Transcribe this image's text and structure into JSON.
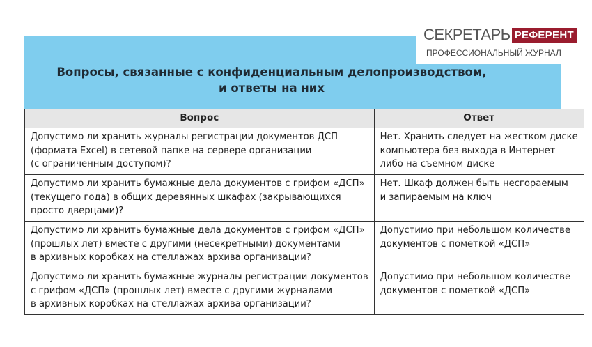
{
  "logo": {
    "name_part1": "СЕКРЕТАРЬ",
    "name_part2": "РЕФЕРЕНТ",
    "subtitle": "ПРОФЕССИОНАЛЬНЫЙ ЖУРНАЛ"
  },
  "title": {
    "line1": "Вопросы, связанные с конфиденциальным делопроизводством,",
    "line2": "и ответы на них"
  },
  "table": {
    "headers": [
      "Вопрос",
      "Ответ"
    ],
    "rows": [
      {
        "q": [
          "Допустимо ли хранить журналы регистрации документов ДСП",
          "(формата Excel) в сетевой папке на сервере организации",
          "(с ограниченным доступом)?"
        ],
        "a": [
          "Нет. Хранить следует на жестком диске",
          "компьютера без выхода в Интернет",
          "либо на съемном диске"
        ]
      },
      {
        "q": [
          "Допустимо ли хранить бумажные дела документов с грифом «ДСП»",
          "(текущего года) в общих деревянных шкафах (закрывающихся",
          "просто дверцами)?"
        ],
        "a": [
          "Нет. Шкаф должен быть несгораемым",
          "и запираемым на ключ"
        ]
      },
      {
        "q": [
          "Допустимо ли хранить бумажные дела документов с грифом «ДСП»",
          "(прошлых лет) вместе с другими (несекретными) документами",
          "в архивных коробках на стеллажах архива организации?"
        ],
        "a": [
          "Допустимо при небольшом количестве",
          "документов с пометкой «ДСП»"
        ]
      },
      {
        "q": [
          "Допустимо ли хранить бумажные журналы регистрации документов",
          "с грифом «ДСП» (прошлых лет) вместе с другими журналами",
          "в архивных коробках на стеллажах архива организации?"
        ],
        "a": [
          "Допустимо при небольшом количестве",
          "документов с пометкой «ДСП»"
        ]
      }
    ]
  },
  "colors": {
    "band": "#7fcdee",
    "header_bg": "#e6e6e6",
    "logo_accent": "#9a1c2e"
  }
}
